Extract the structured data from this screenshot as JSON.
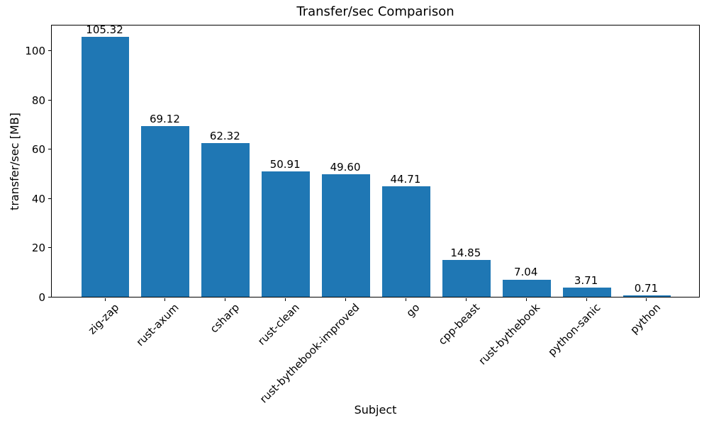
{
  "figure": {
    "title": "Transfer/sec Comparison",
    "xlabel": "Subject",
    "ylabel": "transfer/sec [MB]"
  },
  "chart_data": {
    "type": "bar",
    "title": "Transfer/sec Comparison",
    "xlabel": "Subject",
    "ylabel": "transfer/sec [MB]",
    "categories": [
      "zig-zap",
      "rust-axum",
      "csharp",
      "rust-clean",
      "rust-bythebook-improved",
      "go",
      "cpp-beast",
      "rust-bythebook",
      "python-sanic",
      "python"
    ],
    "values": [
      105.32,
      69.12,
      62.32,
      50.91,
      49.6,
      44.71,
      14.85,
      7.04,
      3.71,
      0.71
    ],
    "value_labels": [
      "105.32",
      "69.12",
      "62.32",
      "50.91",
      "49.60",
      "44.71",
      "14.85",
      "7.04",
      "3.71",
      "0.71"
    ],
    "yticks": [
      0,
      20,
      40,
      60,
      80,
      100
    ],
    "ytick_labels": [
      "0",
      "20",
      "40",
      "60",
      "80",
      "100"
    ],
    "ylim": [
      0,
      110.6
    ],
    "bar_color": "#1f77b4",
    "axis_color": "#000000",
    "grid": false,
    "legend": null,
    "x_tick_rotation_deg": 45
  }
}
